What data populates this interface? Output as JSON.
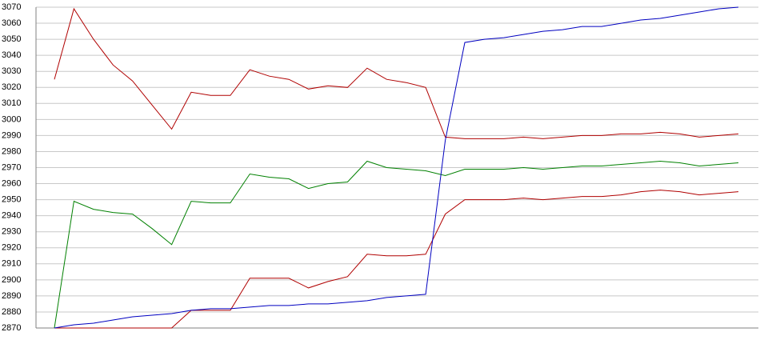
{
  "chart_data": {
    "type": "line",
    "categories": [
      null,
      null,
      null,
      null,
      null,
      null,
      null,
      null,
      null,
      null,
      null,
      null,
      null,
      null,
      null,
      null,
      null,
      null,
      null,
      null,
      null,
      null,
      null,
      null,
      null,
      null,
      null,
      null,
      null,
      null,
      null,
      null,
      null,
      null,
      null,
      null
    ],
    "series": [
      {
        "color": "#b00000",
        "values": [
          3025,
          3069,
          3050,
          3034,
          3024,
          3009,
          2994,
          3017,
          3015,
          3015,
          3031,
          3027,
          3025,
          3019,
          3021,
          3020,
          3032,
          3025,
          3023,
          3020,
          2989,
          2988,
          2988,
          2988,
          2989,
          2988,
          2989,
          2990,
          2990,
          2991,
          2991,
          2992,
          2991,
          2989,
          2990,
          2991
        ]
      },
      {
        "color": "#008000",
        "values": [
          2870,
          2949,
          2944,
          2942,
          2941,
          2932,
          2922,
          2949,
          2948,
          2948,
          2966,
          2964,
          2963,
          2957,
          2960,
          2961,
          2974,
          2970,
          2969,
          2968,
          2965,
          2969,
          2969,
          2969,
          2970,
          2969,
          2970,
          2971,
          2971,
          2972,
          2973,
          2974,
          2973,
          2971,
          2972,
          2973
        ]
      },
      {
        "color": "#b00000",
        "values": [
          2870,
          2870,
          2870,
          2870,
          2870,
          2870,
          2870,
          2881,
          2881,
          2881,
          2901,
          2901,
          2901,
          2895,
          2899,
          2902,
          2916,
          2915,
          2915,
          2916,
          2941,
          2950,
          2950,
          2950,
          2951,
          2950,
          2951,
          2952,
          2952,
          2953,
          2955,
          2956,
          2955,
          2953,
          2954,
          2955
        ]
      },
      {
        "color": "#0000c0",
        "values": [
          2870,
          2872,
          2873,
          2875,
          2877,
          2878,
          2879,
          2881,
          2882,
          2882,
          2883,
          2884,
          2884,
          2885,
          2885,
          2886,
          2887,
          2889,
          2890,
          2891,
          2987,
          3048,
          3050,
          3051,
          3053,
          3055,
          3056,
          3058,
          3058,
          3060,
          3062,
          3063,
          3065,
          3067,
          3069,
          3070
        ]
      }
    ],
    "ylim": [
      2870,
      3070
    ],
    "yticks": [
      2870,
      2880,
      2890,
      2900,
      2910,
      2920,
      2930,
      2940,
      2950,
      2960,
      2970,
      2980,
      2990,
      3000,
      3010,
      3020,
      3030,
      3040,
      3050,
      3060,
      3070
    ],
    "grid": true
  }
}
